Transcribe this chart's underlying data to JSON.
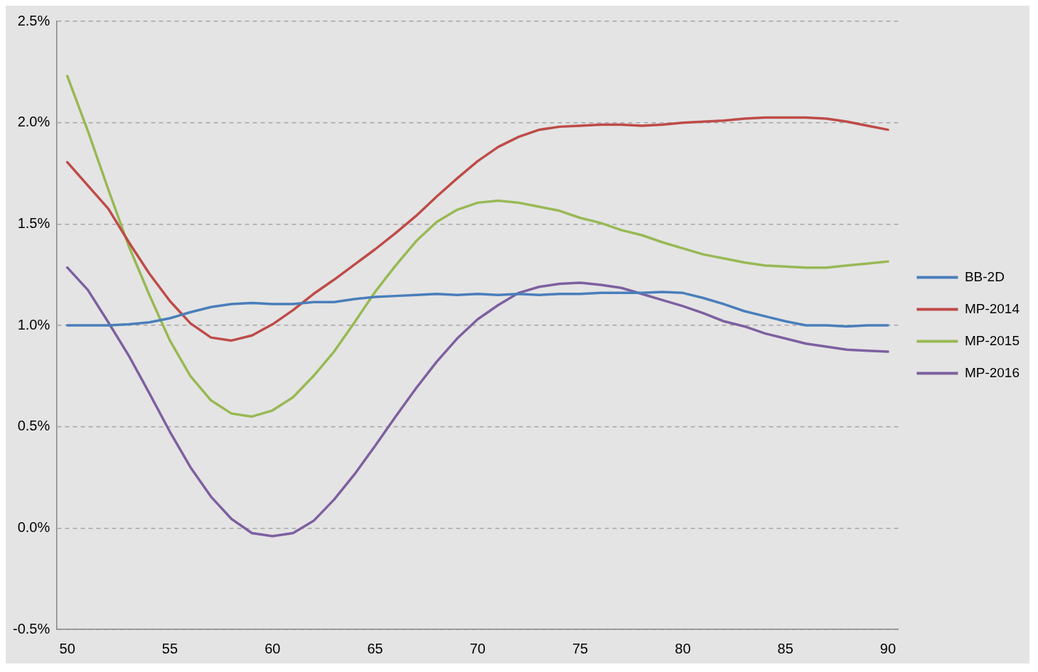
{
  "chart_data": {
    "type": "line",
    "x": [
      50,
      51,
      52,
      53,
      54,
      55,
      56,
      57,
      58,
      59,
      60,
      61,
      62,
      63,
      64,
      65,
      66,
      67,
      68,
      69,
      70,
      71,
      72,
      73,
      74,
      75,
      76,
      77,
      78,
      79,
      80,
      81,
      82,
      83,
      84,
      85,
      86,
      87,
      88,
      89,
      90
    ],
    "xlim": [
      49.5,
      90.5
    ],
    "xticks": [
      50,
      55,
      60,
      65,
      70,
      75,
      80,
      85,
      90
    ],
    "ylim": [
      -0.5,
      2.5
    ],
    "yticks": [
      {
        "value": -0.5,
        "label": "-0.5%"
      },
      {
        "value": 0,
        "label": "0.0%"
      },
      {
        "value": 0.5,
        "label": "0.5%"
      },
      {
        "value": 1,
        "label": "1.0%"
      },
      {
        "value": 1.5,
        "label": "1.5%"
      },
      {
        "value": 2,
        "label": "2.0%"
      },
      {
        "value": 2.5,
        "label": "2.5%"
      }
    ],
    "grid": "y",
    "legend": "right",
    "marker": "none",
    "line_style": "solid",
    "series": [
      {
        "name": "BB-2D",
        "color": "#4a7ebb",
        "values": [
          1.0,
          1.0,
          1.0,
          1.005,
          1.015,
          1.035,
          1.065,
          1.09,
          1.105,
          1.11,
          1.105,
          1.105,
          1.115,
          1.115,
          1.13,
          1.14,
          1.145,
          1.15,
          1.155,
          1.15,
          1.155,
          1.15,
          1.155,
          1.15,
          1.155,
          1.155,
          1.16,
          1.16,
          1.16,
          1.165,
          1.16,
          1.135,
          1.105,
          1.07,
          1.045,
          1.02,
          1.0,
          1.0,
          0.995,
          1.0,
          1.0
        ]
      },
      {
        "name": "MP-2014",
        "color": "#be4b48",
        "values": [
          1.805,
          1.69,
          1.575,
          1.41,
          1.255,
          1.12,
          1.01,
          0.94,
          0.925,
          0.95,
          1.005,
          1.075,
          1.155,
          1.225,
          1.3,
          1.375,
          1.455,
          1.54,
          1.635,
          1.725,
          1.81,
          1.88,
          1.93,
          1.965,
          1.98,
          1.985,
          1.99,
          1.99,
          1.985,
          1.99,
          2.0,
          2.005,
          2.01,
          2.02,
          2.025,
          2.025,
          2.025,
          2.02,
          2.005,
          1.985,
          1.965
        ]
      },
      {
        "name": "MP-2015",
        "color": "#98b954",
        "values": [
          2.23,
          1.96,
          1.67,
          1.39,
          1.15,
          0.925,
          0.75,
          0.63,
          0.565,
          0.55,
          0.58,
          0.645,
          0.75,
          0.87,
          1.015,
          1.165,
          1.295,
          1.415,
          1.51,
          1.57,
          1.605,
          1.615,
          1.605,
          1.585,
          1.565,
          1.53,
          1.505,
          1.47,
          1.445,
          1.41,
          1.38,
          1.35,
          1.33,
          1.31,
          1.295,
          1.29,
          1.285,
          1.285,
          1.295,
          1.305,
          1.315
        ]
      },
      {
        "name": "MP-2016",
        "color": "#7d60a0",
        "values": [
          1.285,
          1.175,
          1.015,
          0.85,
          0.665,
          0.475,
          0.3,
          0.155,
          0.045,
          -0.025,
          -0.04,
          -0.025,
          0.035,
          0.14,
          0.265,
          0.405,
          0.55,
          0.69,
          0.82,
          0.935,
          1.03,
          1.1,
          1.16,
          1.19,
          1.205,
          1.21,
          1.2,
          1.185,
          1.155,
          1.125,
          1.095,
          1.06,
          1.02,
          0.995,
          0.96,
          0.935,
          0.91,
          0.895,
          0.88,
          0.875,
          0.87
        ]
      }
    ]
  }
}
